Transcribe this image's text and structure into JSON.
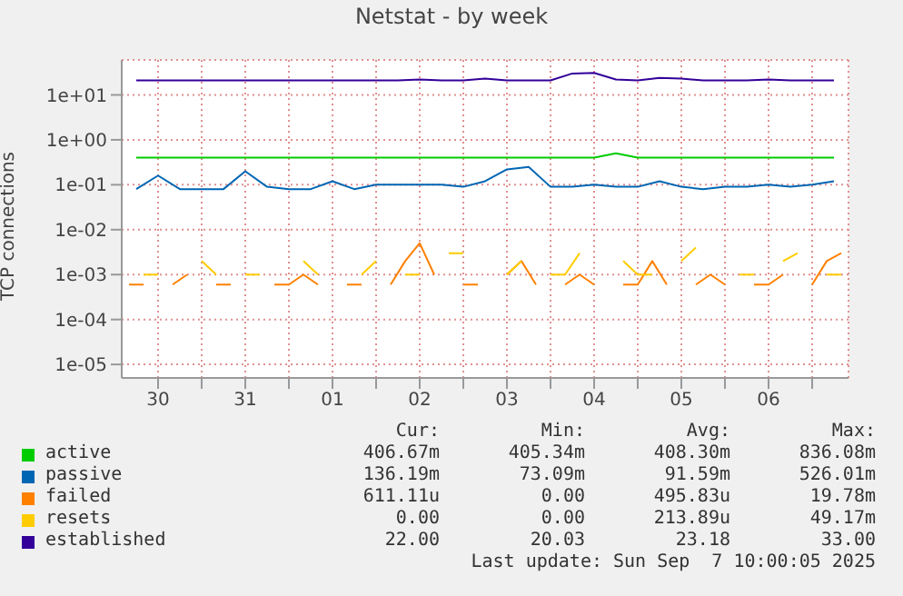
{
  "chart_data": {
    "type": "line",
    "title": "Netstat - by week",
    "ylabel": "TCP connections",
    "log": "y",
    "grid": true,
    "legend": "bottom",
    "marker": "none",
    "line_style": "solid",
    "xlim": [
      "2025-08-30T02:00",
      "2025-09-07T10:00"
    ],
    "xticks": [
      {
        "value": "2025-08-30T12:00",
        "label": "30"
      },
      {
        "value": "2025-08-31T00:00",
        "label": null
      },
      {
        "value": "2025-08-31T12:00",
        "label": "31"
      },
      {
        "value": "2025-09-01T00:00",
        "label": null
      },
      {
        "value": "2025-09-01T12:00",
        "label": "01"
      },
      {
        "value": "2025-09-02T00:00",
        "label": null
      },
      {
        "value": "2025-09-02T12:00",
        "label": "02"
      },
      {
        "value": "2025-09-03T00:00",
        "label": null
      },
      {
        "value": "2025-09-03T12:00",
        "label": "03"
      },
      {
        "value": "2025-09-04T00:00",
        "label": null
      },
      {
        "value": "2025-09-04T12:00",
        "label": "04"
      },
      {
        "value": "2025-09-05T00:00",
        "label": null
      },
      {
        "value": "2025-09-05T12:00",
        "label": "05"
      },
      {
        "value": "2025-09-06T00:00",
        "label": null
      },
      {
        "value": "2025-09-06T12:00",
        "label": "06"
      },
      {
        "value": "2025-09-07T00:00",
        "label": null
      }
    ],
    "ylim": [
      5e-06,
      60
    ],
    "yticks": [
      {
        "value": 1e-05,
        "label": "1e-05"
      },
      {
        "value": 0.0001,
        "label": "1e-04"
      },
      {
        "value": 0.001,
        "label": "1e-03"
      },
      {
        "value": 0.01,
        "label": "1e-02"
      },
      {
        "value": 0.1,
        "label": "1e-01"
      },
      {
        "value": 1,
        "label": "1e+00"
      },
      {
        "value": 10,
        "label": "1e+01"
      }
    ],
    "x": [
      "2025-08-30T06:00",
      "2025-08-30T12:00",
      "2025-08-30T18:00",
      "2025-08-31T00:00",
      "2025-08-31T06:00",
      "2025-08-31T12:00",
      "2025-08-31T18:00",
      "2025-09-01T00:00",
      "2025-09-01T06:00",
      "2025-09-01T12:00",
      "2025-09-01T18:00",
      "2025-09-02T00:00",
      "2025-09-02T06:00",
      "2025-09-02T12:00",
      "2025-09-02T18:00",
      "2025-09-03T00:00",
      "2025-09-03T06:00",
      "2025-09-03T12:00",
      "2025-09-03T18:00",
      "2025-09-04T00:00",
      "2025-09-04T06:00",
      "2025-09-04T12:00",
      "2025-09-04T18:00",
      "2025-09-05T00:00",
      "2025-09-05T06:00",
      "2025-09-05T12:00",
      "2025-09-05T18:00",
      "2025-09-06T00:00",
      "2025-09-06T06:00",
      "2025-09-06T12:00",
      "2025-09-06T18:00",
      "2025-09-07T00:00",
      "2025-09-07T06:00"
    ],
    "series": [
      {
        "name": "active",
        "color": "#00cc00",
        "values": [
          0.4,
          0.4,
          0.4,
          0.4,
          0.4,
          0.4,
          0.4,
          0.4,
          0.4,
          0.4,
          0.4,
          0.4,
          0.4,
          0.4,
          0.4,
          0.4,
          0.4,
          0.4,
          0.4,
          0.4,
          0.4,
          0.4,
          0.5,
          0.4,
          0.4,
          0.4,
          0.4,
          0.4,
          0.4,
          0.4,
          0.4,
          0.4,
          0.4
        ]
      },
      {
        "name": "passive",
        "color": "#0066b3",
        "values": [
          0.08,
          0.16,
          0.08,
          0.08,
          0.08,
          0.2,
          0.09,
          0.08,
          0.08,
          0.12,
          0.08,
          0.1,
          0.1,
          0.1,
          0.1,
          0.09,
          0.12,
          0.22,
          0.25,
          0.09,
          0.09,
          0.1,
          0.09,
          0.09,
          0.12,
          0.09,
          0.08,
          0.09,
          0.09,
          0.1,
          0.09,
          0.1,
          0.12
        ]
      },
      {
        "name": "failed",
        "color": "#ff8000",
        "x": [
          "2025-08-30T04:00",
          "2025-08-30T08:00",
          "2025-08-30T12:00",
          "2025-08-30T16:00",
          "2025-08-30T20:00",
          "2025-08-31T00:00",
          "2025-08-31T04:00",
          "2025-08-31T08:00",
          "2025-08-31T12:00",
          "2025-08-31T16:00",
          "2025-08-31T20:00",
          "2025-09-01T00:00",
          "2025-09-01T04:00",
          "2025-09-01T08:00",
          "2025-09-01T12:00",
          "2025-09-01T16:00",
          "2025-09-01T20:00",
          "2025-09-02T00:00",
          "2025-09-02T04:00",
          "2025-09-02T08:00",
          "2025-09-02T12:00",
          "2025-09-02T16:00",
          "2025-09-02T20:00",
          "2025-09-03T00:00",
          "2025-09-03T04:00",
          "2025-09-03T08:00",
          "2025-09-03T12:00",
          "2025-09-03T16:00",
          "2025-09-03T20:00",
          "2025-09-04T00:00",
          "2025-09-04T04:00",
          "2025-09-04T08:00",
          "2025-09-04T12:00",
          "2025-09-04T16:00",
          "2025-09-04T20:00",
          "2025-09-05T00:00",
          "2025-09-05T04:00",
          "2025-09-05T08:00",
          "2025-09-05T12:00",
          "2025-09-05T16:00",
          "2025-09-05T20:00",
          "2025-09-06T00:00",
          "2025-09-06T04:00",
          "2025-09-06T08:00",
          "2025-09-06T12:00",
          "2025-09-06T16:00",
          "2025-09-06T20:00",
          "2025-09-07T00:00",
          "2025-09-07T04:00",
          "2025-09-07T08:00"
        ],
        "values": [
          0.0006,
          0.0006,
          null,
          0.0006,
          0.001,
          null,
          0.0006,
          0.0006,
          null,
          null,
          0.0006,
          0.0006,
          0.001,
          0.0006,
          null,
          0.0006,
          0.0006,
          null,
          0.0006,
          0.002,
          0.005,
          0.001,
          null,
          0.0006,
          0.0006,
          null,
          0.001,
          0.002,
          0.0006,
          null,
          0.0006,
          0.001,
          0.0006,
          null,
          0.0006,
          0.0006,
          0.002,
          0.0006,
          null,
          0.0006,
          0.001,
          0.0006,
          null,
          0.0006,
          0.0006,
          0.001,
          null,
          0.0006,
          0.002,
          0.003
        ]
      },
      {
        "name": "resets",
        "color": "#ffcc00",
        "x": [
          "2025-08-30T08:00",
          "2025-08-30T12:00",
          "2025-08-30T16:00",
          "2025-08-30T20:00",
          "2025-08-31T00:00",
          "2025-08-31T04:00",
          "2025-08-31T08:00",
          "2025-08-31T12:00",
          "2025-08-31T16:00",
          "2025-08-31T20:00",
          "2025-09-01T00:00",
          "2025-09-01T04:00",
          "2025-09-01T08:00",
          "2025-09-01T12:00",
          "2025-09-01T16:00",
          "2025-09-01T20:00",
          "2025-09-02T00:00",
          "2025-09-02T04:00",
          "2025-09-02T08:00",
          "2025-09-02T12:00",
          "2025-09-02T16:00",
          "2025-09-02T20:00",
          "2025-09-03T00:00",
          "2025-09-03T04:00",
          "2025-09-03T08:00",
          "2025-09-03T12:00",
          "2025-09-03T16:00",
          "2025-09-03T20:00",
          "2025-09-04T00:00",
          "2025-09-04T04:00",
          "2025-09-04T08:00",
          "2025-09-04T12:00",
          "2025-09-04T16:00",
          "2025-09-04T20:00",
          "2025-09-05T00:00",
          "2025-09-05T04:00",
          "2025-09-05T08:00",
          "2025-09-05T12:00",
          "2025-09-05T16:00",
          "2025-09-05T20:00",
          "2025-09-06T00:00",
          "2025-09-06T04:00",
          "2025-09-06T08:00",
          "2025-09-06T12:00",
          "2025-09-06T16:00",
          "2025-09-06T20:00",
          "2025-09-07T00:00",
          "2025-09-07T04:00",
          "2025-09-07T08:00"
        ],
        "values": [
          0.001,
          0.001,
          null,
          null,
          0.002,
          0.001,
          null,
          0.001,
          0.001,
          null,
          null,
          0.002,
          0.001,
          null,
          null,
          0.001,
          0.002,
          null,
          0.001,
          0.001,
          null,
          0.003,
          0.003,
          null,
          null,
          0.001,
          0.002,
          null,
          0.001,
          0.001,
          0.003,
          null,
          null,
          0.002,
          0.001,
          0.001,
          null,
          0.002,
          0.004,
          null,
          null,
          0.001,
          0.001,
          null,
          0.002,
          0.003,
          null,
          0.001,
          0.001
        ]
      },
      {
        "name": "established",
        "color": "#330099",
        "values": [
          21,
          21,
          21,
          21,
          21,
          21,
          21,
          21,
          21,
          21,
          21,
          21,
          21,
          22,
          21,
          21,
          23,
          21,
          21,
          21,
          30,
          31,
          22,
          21,
          24,
          23,
          21,
          21,
          21,
          22,
          21,
          21,
          21
        ]
      }
    ],
    "annotations": [
      "Cur:",
      "Min:",
      "Avg:",
      "Max:",
      "406.67m",
      "405.34m",
      "408.30m",
      "836.08m",
      "136.19m",
      "73.09m",
      "91.59m",
      "526.01m",
      "611.11u",
      "0.00",
      "495.83u",
      "19.78m",
      "0.00",
      "0.00",
      "213.89u",
      "49.17m",
      "22.00",
      "20.03",
      "23.18",
      "33.00",
      "Last update: Sun Sep  7 10:00:05 2025"
    ]
  }
}
